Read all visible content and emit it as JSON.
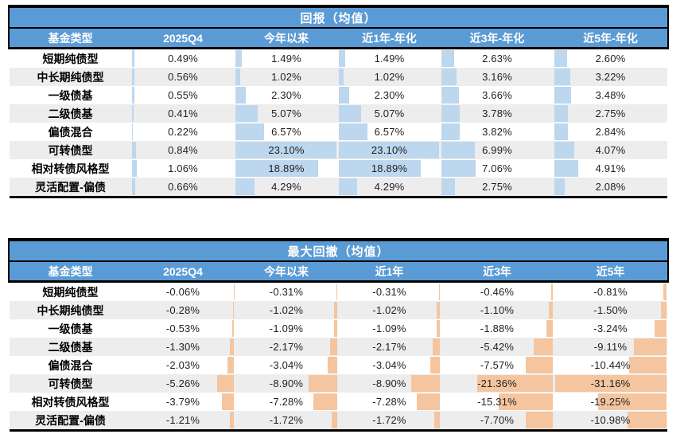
{
  "page": {
    "background": "#ffffff"
  },
  "colors": {
    "header_blue": "#5B9BD5",
    "bar_blue": "#BDD7EE",
    "bar_peach": "#F4C59F",
    "stripe_gray": "#EDEDED",
    "border_black": "#000000",
    "header_text": "#FFFFFF",
    "value_text": "#1F1F1F"
  },
  "chart_data": [
    {
      "type": "table",
      "title": "回报（均值）",
      "bar_anchor": "left",
      "bar_color": "#BDD7EE",
      "scale_max_abs_percent": 23.1,
      "columns": [
        "基金类型",
        "2025Q4",
        "今年以来",
        "近1年-年化",
        "近3年-年化",
        "近5年-年化"
      ],
      "rows": [
        {
          "fund_type": "短期纯债型",
          "values": [
            "0.49%",
            "1.49%",
            "1.49%",
            "2.63%",
            "2.60%"
          ],
          "numbers": [
            0.49,
            1.49,
            1.49,
            2.63,
            2.6
          ]
        },
        {
          "fund_type": "中长期纯债型",
          "values": [
            "0.56%",
            "1.02%",
            "1.02%",
            "3.16%",
            "3.22%"
          ],
          "numbers": [
            0.56,
            1.02,
            1.02,
            3.16,
            3.22
          ]
        },
        {
          "fund_type": "一级债基",
          "values": [
            "0.55%",
            "2.30%",
            "2.30%",
            "3.66%",
            "3.48%"
          ],
          "numbers": [
            0.55,
            2.3,
            2.3,
            3.66,
            3.48
          ]
        },
        {
          "fund_type": "二级债基",
          "values": [
            "0.41%",
            "5.07%",
            "5.07%",
            "3.78%",
            "2.75%"
          ],
          "numbers": [
            0.41,
            5.07,
            5.07,
            3.78,
            2.75
          ]
        },
        {
          "fund_type": "偏债混合",
          "values": [
            "0.22%",
            "6.57%",
            "6.57%",
            "3.82%",
            "2.84%"
          ],
          "numbers": [
            0.22,
            6.57,
            6.57,
            3.82,
            2.84
          ]
        },
        {
          "fund_type": "可转债型",
          "values": [
            "0.84%",
            "23.10%",
            "23.10%",
            "6.99%",
            "4.07%"
          ],
          "numbers": [
            0.84,
            23.1,
            23.1,
            6.99,
            4.07
          ]
        },
        {
          "fund_type": "相对转债风格型",
          "values": [
            "1.06%",
            "18.89%",
            "18.89%",
            "7.06%",
            "4.91%"
          ],
          "numbers": [
            1.06,
            18.89,
            18.89,
            7.06,
            4.91
          ]
        },
        {
          "fund_type": "灵活配置-偏债",
          "values": [
            "0.66%",
            "4.29%",
            "4.29%",
            "2.75%",
            "2.08%"
          ],
          "numbers": [
            0.66,
            4.29,
            4.29,
            2.75,
            2.08
          ]
        }
      ]
    },
    {
      "type": "table",
      "title": "最大回撤（均值）",
      "bar_anchor": "right",
      "bar_color": "#F4C59F",
      "scale_max_abs_percent": 31.16,
      "columns": [
        "基金类型",
        "2025Q4",
        "今年以来",
        "近1年",
        "近3年",
        "近5年"
      ],
      "rows": [
        {
          "fund_type": "短期纯债型",
          "values": [
            "-0.06%",
            "-0.31%",
            "-0.31%",
            "-0.46%",
            "-0.81%"
          ],
          "numbers": [
            -0.06,
            -0.31,
            -0.31,
            -0.46,
            -0.81
          ]
        },
        {
          "fund_type": "中长期纯债型",
          "values": [
            "-0.28%",
            "-1.02%",
            "-1.02%",
            "-1.10%",
            "-1.50%"
          ],
          "numbers": [
            -0.28,
            -1.02,
            -1.02,
            -1.1,
            -1.5
          ]
        },
        {
          "fund_type": "一级债基",
          "values": [
            "-0.53%",
            "-1.09%",
            "-1.09%",
            "-1.88%",
            "-3.24%"
          ],
          "numbers": [
            -0.53,
            -1.09,
            -1.09,
            -1.88,
            -3.24
          ]
        },
        {
          "fund_type": "二级债基",
          "values": [
            "-1.30%",
            "-2.17%",
            "-2.17%",
            "-5.42%",
            "-9.11%"
          ],
          "numbers": [
            -1.3,
            -2.17,
            -2.17,
            -5.42,
            -9.11
          ]
        },
        {
          "fund_type": "偏债混合",
          "values": [
            "-2.03%",
            "-3.04%",
            "-3.04%",
            "-7.57%",
            "-10.44%"
          ],
          "numbers": [
            -2.03,
            -3.04,
            -3.04,
            -7.57,
            -10.44
          ]
        },
        {
          "fund_type": "可转债型",
          "values": [
            "-5.26%",
            "-8.90%",
            "-8.90%",
            "-21.36%",
            "-31.16%"
          ],
          "numbers": [
            -5.26,
            -8.9,
            -8.9,
            -21.36,
            -31.16
          ]
        },
        {
          "fund_type": "相对转债风格型",
          "values": [
            "-3.79%",
            "-7.28%",
            "-7.28%",
            "-15.31%",
            "-19.25%"
          ],
          "numbers": [
            -3.79,
            -7.28,
            -7.28,
            -15.31,
            -19.25
          ]
        },
        {
          "fund_type": "灵活配置-偏债",
          "values": [
            "-1.21%",
            "-1.72%",
            "-1.72%",
            "-7.70%",
            "-10.98%"
          ],
          "numbers": [
            -1.21,
            -1.72,
            -1.72,
            -7.7,
            -10.98
          ]
        }
      ]
    }
  ]
}
